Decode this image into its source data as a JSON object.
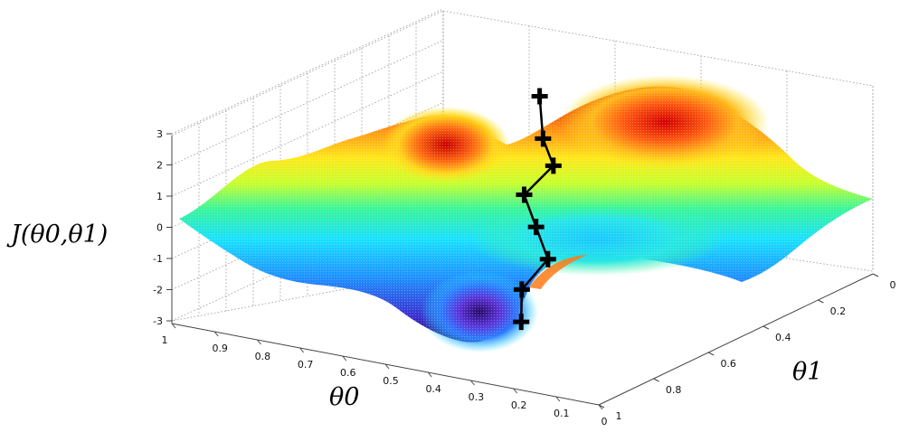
{
  "chart_data": {
    "type": "surface3d",
    "zlabel": "J(θ0,θ1)",
    "xlabel": "θ0",
    "ylabel": "θ1",
    "z_ticks": [
      "3",
      "2",
      "1",
      "0",
      "-1",
      "-2",
      "-3"
    ],
    "x_ticks": [
      "1",
      "0.9",
      "0.8",
      "0.7",
      "0.6",
      "0.5",
      "0.4",
      "0.3",
      "0.2",
      "0.1",
      "0"
    ],
    "y_ticks": [
      "0",
      "0.2",
      "0.4",
      "0.6",
      "0.8",
      "1"
    ],
    "zlim": [
      -3,
      3
    ],
    "xlim": [
      0,
      1
    ],
    "ylim": [
      0,
      1
    ],
    "colormap": "jet",
    "descent_path": [
      {
        "theta0": 0.62,
        "theta1": 0.25,
        "J": 2.4
      },
      {
        "theta0": 0.58,
        "theta1": 0.3,
        "J": 1.3
      },
      {
        "theta0": 0.53,
        "theta1": 0.34,
        "J": 0.7
      },
      {
        "theta0": 0.56,
        "theta1": 0.4,
        "J": -0.1
      },
      {
        "theta0": 0.5,
        "theta1": 0.45,
        "J": -0.8
      },
      {
        "theta0": 0.44,
        "theta1": 0.5,
        "J": -1.5
      },
      {
        "theta0": 0.45,
        "theta1": 0.58,
        "J": -2.2
      },
      {
        "theta0": 0.4,
        "theta1": 0.66,
        "J": -2.8
      }
    ],
    "grid": true
  }
}
